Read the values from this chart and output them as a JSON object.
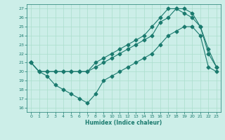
{
  "title": "",
  "xlabel": "Humidex (Indice chaleur)",
  "bg_color": "#cceee8",
  "line_color": "#1a7a6e",
  "grid_color": "#aaddcc",
  "xlim": [
    -0.5,
    23.5
  ],
  "ylim": [
    15.5,
    27.5
  ],
  "xticks": [
    0,
    1,
    2,
    3,
    4,
    5,
    6,
    7,
    8,
    9,
    10,
    11,
    12,
    13,
    14,
    15,
    16,
    17,
    18,
    19,
    20,
    21,
    22,
    23
  ],
  "yticks": [
    16,
    17,
    18,
    19,
    20,
    21,
    22,
    23,
    24,
    25,
    26,
    27
  ],
  "series1_x": [
    0,
    1,
    2,
    3,
    4,
    5,
    6,
    7,
    8,
    9,
    10,
    11,
    12,
    13,
    14,
    15,
    16,
    17,
    18,
    19,
    20,
    21,
    22,
    23
  ],
  "series1_y": [
    21,
    20,
    19.5,
    18.5,
    18,
    17.5,
    17,
    16.5,
    17.5,
    19,
    19.5,
    20,
    20.5,
    21,
    21.5,
    22,
    23,
    24,
    24.5,
    25,
    25,
    24,
    20.5,
    20
  ],
  "series2_x": [
    0,
    1,
    2,
    3,
    4,
    5,
    6,
    7,
    8,
    9,
    10,
    11,
    12,
    13,
    14,
    15,
    16,
    17,
    18,
    19,
    20,
    21,
    22,
    23
  ],
  "series2_y": [
    21,
    20,
    20,
    20,
    20,
    20,
    20,
    20,
    20.5,
    21,
    21.5,
    22,
    22.5,
    23,
    23.5,
    24,
    25.5,
    26,
    27,
    27,
    26.5,
    25,
    22.5,
    20.5
  ],
  "series3_x": [
    0,
    1,
    2,
    3,
    4,
    5,
    6,
    7,
    8,
    9,
    10,
    11,
    12,
    13,
    14,
    15,
    16,
    17,
    18,
    19,
    20,
    21,
    22,
    23
  ],
  "series3_y": [
    21,
    20,
    20,
    20,
    20,
    20,
    20,
    20,
    21,
    21.5,
    22,
    22.5,
    23,
    23.5,
    24,
    25,
    26,
    27,
    27,
    26.5,
    26,
    25,
    22,
    20.5
  ]
}
